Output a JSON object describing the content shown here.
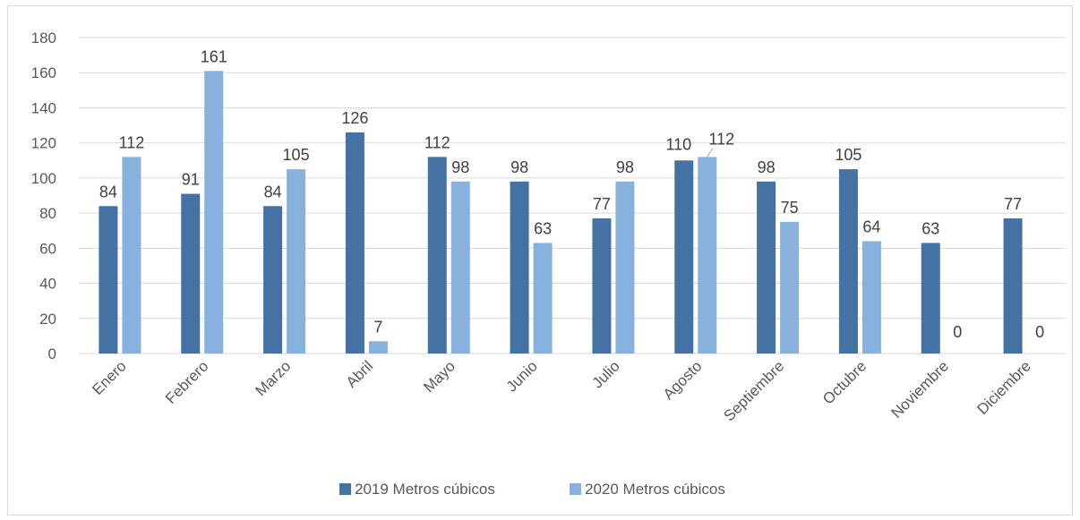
{
  "chart_data": {
    "type": "bar",
    "categories": [
      "Enero",
      "Febrero",
      "Marzo",
      "Abril",
      "Mayo",
      "Junio",
      "Julio",
      "Agosto",
      "Septiembre",
      "Octubre",
      "Noviembre",
      "Diciembre"
    ],
    "series": [
      {
        "name": "2019 Metros cúbicos",
        "color": "#4472a4",
        "values": [
          84,
          91,
          84,
          126,
          112,
          98,
          77,
          110,
          98,
          105,
          63,
          77
        ]
      },
      {
        "name": "2020 Metros cúbicos",
        "color": "#88b1de",
        "values": [
          112,
          161,
          105,
          7,
          98,
          63,
          98,
          112,
          75,
          64,
          0,
          0
        ]
      }
    ],
    "ylim": [
      0,
      180
    ],
    "yticks": [
      0,
      20,
      40,
      60,
      80,
      100,
      120,
      140,
      160,
      180
    ],
    "grid": true,
    "legend": "bottom",
    "gridline_color": "#d9d9d9"
  }
}
